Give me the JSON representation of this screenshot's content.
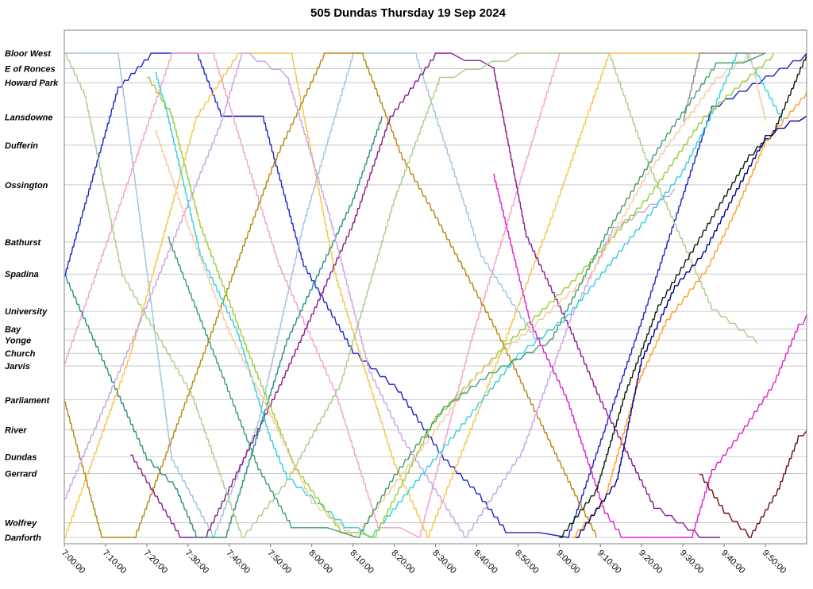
{
  "chart_data": {
    "type": "line",
    "title": "505 Dundas Thursday 19 Sep 2024",
    "xlabel": "",
    "ylabel": "",
    "x_range_minutes_after_midnight": [
      420,
      600
    ],
    "x_ticks": [
      "7:00:00",
      "7:10:00",
      "7:20:00",
      "7:30:00",
      "7:40:00",
      "7:50:00",
      "8:00:00",
      "8:10:00",
      "8:20:00",
      "8:30:00",
      "8:40:00",
      "8:50:00",
      "9:00:00",
      "9:10:00",
      "9:20:00",
      "9:30:00",
      "9:40:00",
      "9:50:00"
    ],
    "y_axis": "distance along route, stops listed west (top) to east (bottom)",
    "grid": true,
    "legend": "none",
    "stops": [
      {
        "name": "Bloor West",
        "pos": 0.0
      },
      {
        "name": "E of Ronces",
        "pos": 3.2
      },
      {
        "name": "Howard Park",
        "pos": 6.1
      },
      {
        "name": "Lansdowne",
        "pos": 13.2
      },
      {
        "name": "Dufferin",
        "pos": 19.0
      },
      {
        "name": "Ossington",
        "pos": 27.2
      },
      {
        "name": "Bathurst",
        "pos": 39.0
      },
      {
        "name": "Spadina",
        "pos": 45.6
      },
      {
        "name": "University",
        "pos": 53.3
      },
      {
        "name": "Bay",
        "pos": 57.0
      },
      {
        "name": "Yonge",
        "pos": 59.3
      },
      {
        "name": "Church",
        "pos": 62.0
      },
      {
        "name": "Jarvis",
        "pos": 64.6
      },
      {
        "name": "Parliament",
        "pos": 71.6
      },
      {
        "name": "River",
        "pos": 77.8
      },
      {
        "name": "Dundas",
        "pos": 83.4
      },
      {
        "name": "Gerrard",
        "pos": 86.8
      },
      {
        "name": "Wolfrey",
        "pos": 97.0
      },
      {
        "name": "Danforth",
        "pos": 100.0
      }
    ],
    "series": [
      {
        "color": "#1f24c8",
        "points": [
          [
            420,
            46
          ],
          [
            433,
            7
          ],
          [
            441,
            0
          ],
          [
            452,
            0
          ],
          [
            458,
            13
          ],
          [
            468,
            13
          ],
          [
            478,
            44
          ],
          [
            490,
            62
          ],
          [
            501,
            70
          ],
          [
            512,
            84
          ],
          [
            520,
            91
          ],
          [
            527,
            99
          ],
          [
            542,
            100
          ],
          [
            560,
            55
          ],
          [
            577,
            11
          ],
          [
            600,
            0
          ]
        ]
      },
      {
        "color": "#9ec3de",
        "points": [
          [
            420,
            0
          ],
          [
            433,
            0
          ],
          [
            446,
            84
          ],
          [
            456,
            100
          ],
          [
            467,
            76
          ],
          [
            478,
            35
          ],
          [
            490,
            0
          ],
          [
            505,
            0
          ],
          [
            521,
            42
          ],
          [
            534,
            59
          ],
          [
            536,
            59
          ]
        ]
      },
      {
        "color": "#f3a0cf",
        "points": [
          [
            420,
            64
          ],
          [
            440,
            15
          ],
          [
            446,
            0
          ],
          [
            456,
            0
          ],
          [
            472,
            44
          ],
          [
            486,
            71
          ],
          [
            496,
            98
          ],
          [
            506,
            100
          ],
          [
            519,
            58
          ],
          [
            537,
            8
          ],
          [
            540,
            0
          ],
          [
            552,
            0
          ]
        ]
      },
      {
        "color": "#f7c34a",
        "points": [
          [
            420,
            100
          ],
          [
            436,
            62
          ],
          [
            452,
            13
          ],
          [
            462,
            0
          ],
          [
            475,
            0
          ],
          [
            486,
            47
          ],
          [
            500,
            85
          ],
          [
            508,
            100
          ],
          [
            522,
            70
          ],
          [
            538,
            34
          ],
          [
            552,
            0
          ],
          [
            575,
            0
          ]
        ]
      },
      {
        "color": "#b8860b",
        "points": [
          [
            420,
            72
          ],
          [
            429,
            100
          ],
          [
            437,
            100
          ],
          [
            455,
            59
          ],
          [
            471,
            22
          ],
          [
            483,
            0
          ],
          [
            492,
            0
          ],
          [
            502,
            22
          ],
          [
            510,
            34
          ],
          [
            525,
            58
          ],
          [
            543,
            90
          ],
          [
            549,
            100
          ]
        ]
      },
      {
        "color": "#8b1a8b",
        "points": [
          [
            436,
            83
          ],
          [
            448,
            100
          ],
          [
            454,
            100
          ],
          [
            473,
            67
          ],
          [
            490,
            35
          ],
          [
            499,
            13
          ],
          [
            510,
            0
          ],
          [
            524,
            3
          ],
          [
            532,
            38
          ],
          [
            543,
            58
          ],
          [
            550,
            72
          ],
          [
            563,
            94
          ],
          [
            574,
            100
          ],
          [
            579,
            100
          ]
        ]
      },
      {
        "color": "#2a8f80",
        "points": [
          [
            420,
            46
          ],
          [
            440,
            84
          ],
          [
            447,
            90
          ],
          [
            452,
            100
          ],
          [
            459,
            100
          ],
          [
            474,
            59
          ],
          [
            490,
            30
          ],
          [
            497,
            13
          ]
        ]
      },
      {
        "color": "#a8ce8a",
        "points": [
          [
            420,
            0
          ],
          [
            425,
            9
          ],
          [
            434,
            46
          ],
          [
            451,
            71
          ],
          [
            463,
            100
          ],
          [
            474,
            88
          ],
          [
            487,
            68
          ],
          [
            500,
            30
          ],
          [
            511,
            5
          ],
          [
            530,
            0
          ],
          [
            552,
            0
          ],
          [
            561,
            22
          ],
          [
            577,
            53
          ],
          [
            588,
            60
          ]
        ]
      },
      {
        "color": "#c9a3e3",
        "points": [
          [
            420,
            92
          ],
          [
            436,
            60
          ],
          [
            448,
            35
          ],
          [
            458,
            14
          ],
          [
            463,
            0
          ],
          [
            474,
            5
          ],
          [
            484,
            33
          ],
          [
            494,
            66
          ],
          [
            502,
            80
          ],
          [
            517,
            100
          ],
          [
            531,
            82
          ],
          [
            543,
            54
          ],
          [
            553,
            36
          ],
          [
            568,
            28
          ]
        ]
      },
      {
        "color": "#33cfe0",
        "points": [
          [
            442,
            4
          ],
          [
            445,
            13
          ],
          [
            453,
            42
          ],
          [
            462,
            58
          ],
          [
            470,
            80
          ],
          [
            474,
            88
          ],
          [
            481,
            93
          ],
          [
            488,
            98
          ],
          [
            494,
            100
          ],
          [
            515,
            78
          ],
          [
            530,
            62
          ],
          [
            542,
            54
          ],
          [
            560,
            35
          ],
          [
            570,
            24
          ],
          [
            576,
            14
          ],
          [
            583,
            0
          ],
          [
            585,
            0
          ],
          [
            594,
            14
          ]
        ]
      },
      {
        "color": "#9acd32",
        "points": [
          [
            440,
            5
          ],
          [
            446,
            13
          ],
          [
            453,
            36
          ],
          [
            465,
            63
          ],
          [
            476,
            86
          ],
          [
            487,
            99
          ],
          [
            495,
            100
          ],
          [
            510,
            75
          ],
          [
            527,
            60
          ],
          [
            543,
            47
          ],
          [
            562,
            29
          ],
          [
            575,
            13
          ],
          [
            592,
            0
          ]
        ]
      },
      {
        "color": "#f7c9a0",
        "points": [
          [
            442,
            16
          ],
          [
            450,
            36
          ],
          [
            460,
            58
          ],
          [
            470,
            75
          ],
          [
            480,
            93
          ],
          [
            490,
            100
          ],
          [
            506,
            82
          ],
          [
            520,
            66
          ],
          [
            535,
            55
          ],
          [
            548,
            45
          ],
          [
            561,
            25
          ],
          [
            578,
            5
          ],
          [
            586,
            0
          ],
          [
            590,
            14
          ]
        ]
      },
      {
        "color": "#3d9e6e",
        "points": [
          [
            445,
            38
          ],
          [
            457,
            64
          ],
          [
            467,
            86
          ],
          [
            475,
            98
          ],
          [
            491,
            100
          ],
          [
            500,
            87
          ],
          [
            512,
            73
          ],
          [
            523,
            66
          ],
          [
            538,
            59
          ],
          [
            552,
            36
          ],
          [
            565,
            18
          ],
          [
            578,
            2
          ],
          [
            590,
            0
          ]
        ]
      },
      {
        "color": "#e020d0",
        "points": [
          [
            524,
            25
          ],
          [
            533,
            56
          ],
          [
            542,
            72
          ],
          [
            551,
            95
          ],
          [
            555,
            100
          ],
          [
            572,
            100
          ],
          [
            577,
            86
          ],
          [
            585,
            77
          ],
          [
            592,
            68
          ],
          [
            598,
            56
          ],
          [
            600,
            54
          ]
        ]
      },
      {
        "color": "#0a1f0a",
        "points": [
          [
            540,
            100
          ],
          [
            549,
            90
          ],
          [
            556,
            70
          ],
          [
            564,
            52
          ],
          [
            574,
            38
          ],
          [
            586,
            21
          ],
          [
            592,
            16
          ],
          [
            600,
            0
          ]
        ]
      },
      {
        "color": "#6b0f0f",
        "points": [
          [
            574,
            87
          ],
          [
            580,
            95
          ],
          [
            586,
            100
          ],
          [
            593,
            90
          ],
          [
            598,
            79
          ],
          [
            600,
            78
          ]
        ]
      },
      {
        "color": "#ff9f2a",
        "points": [
          [
            543,
            100
          ],
          [
            551,
            92
          ],
          [
            559,
            68
          ],
          [
            566,
            55
          ],
          [
            576,
            44
          ],
          [
            584,
            30
          ],
          [
            590,
            18
          ],
          [
            596,
            12
          ],
          [
            600,
            8
          ]
        ]
      },
      {
        "color": "#8e8e8e",
        "points": [
          [
            570,
            14
          ],
          [
            574,
            0
          ],
          [
            590,
            0
          ]
        ]
      },
      {
        "color": "#00008b",
        "points": [
          [
            544,
            100
          ],
          [
            554,
            88
          ],
          [
            560,
            63
          ],
          [
            568,
            48
          ],
          [
            575,
            41
          ],
          [
            583,
            28
          ],
          [
            590,
            17
          ],
          [
            596,
            14
          ],
          [
            600,
            13
          ]
        ]
      }
    ]
  }
}
